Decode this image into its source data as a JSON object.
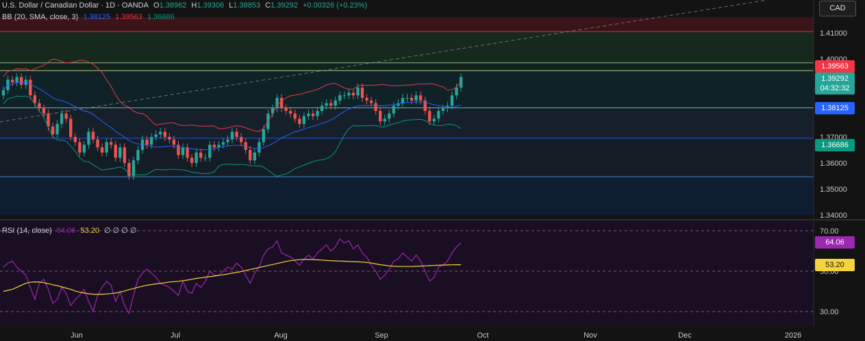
{
  "header": {
    "symbol_title": "U.S. Dollar / Canadian Dollar · 1D · OANDA",
    "open_label": "O",
    "open": "1.38962",
    "high_label": "H",
    "high": "1.39306",
    "low_label": "L",
    "low": "1.38853",
    "close_label": "C",
    "close": "1.39292",
    "change": "+0.00326 (+0.23%)",
    "bb_label": "BB (20, SMA, close, 3)",
    "bb_basis": "1.38125",
    "bb_upper": "1.39563",
    "bb_lower": "1.36686",
    "rsi_label": "RSI (14, close)",
    "rsi_value": "64.06",
    "rsi_ma": "53.20",
    "rsi_extra": "∅ ∅ ∅ ∅"
  },
  "currency_button": "CAD",
  "price_badges": {
    "bb_upper": "1.39563",
    "last": "1.39292",
    "countdown": "04:32:32",
    "bb_basis": "1.38125",
    "bb_lower": "1.36686",
    "rsi": "64.06",
    "rsi_ma": "53.20"
  },
  "colors": {
    "background": "#131313",
    "up": "#26a69a",
    "down": "#ef5350",
    "bb_basis": "#2962ff",
    "bb_upper": "#f23645",
    "bb_lower": "#089981",
    "rsi": "#9c27b0",
    "rsi_ma": "#f5d33a"
  },
  "chart_data": [
    {
      "type": "candlestick",
      "title": "U.S. Dollar / Canadian Dollar · 1D · OANDA",
      "y_axis_ticks": [
        "1.41000",
        "1.40000",
        "1.37000",
        "1.36000",
        "1.35000",
        "1.34000"
      ],
      "x_axis_ticks": [
        "Jun",
        "Jul",
        "Aug",
        "Sep",
        "Oct",
        "Nov",
        "Dec",
        "2026"
      ],
      "ylim": [
        1.337,
        1.426
      ],
      "ohlc_close_series": [
        1.388,
        1.392,
        1.391,
        1.393,
        1.39,
        1.392,
        1.386,
        1.383,
        1.381,
        1.379,
        1.374,
        1.371,
        1.375,
        1.379,
        1.377,
        1.37,
        1.368,
        1.364,
        1.367,
        1.372,
        1.369,
        1.366,
        1.364,
        1.368,
        1.367,
        1.362,
        1.366,
        1.36,
        1.355,
        1.361,
        1.365,
        1.369,
        1.367,
        1.37,
        1.371,
        1.372,
        1.37,
        1.369,
        1.367,
        1.363,
        1.366,
        1.362,
        1.36,
        1.364,
        1.362,
        1.362,
        1.367,
        1.366,
        1.367,
        1.368,
        1.369,
        1.372,
        1.37,
        1.368,
        1.365,
        1.361,
        1.364,
        1.368,
        1.373,
        1.379,
        1.381,
        1.385,
        1.381,
        1.38,
        1.379,
        1.377,
        1.375,
        1.378,
        1.379,
        1.378,
        1.38,
        1.382,
        1.383,
        1.382,
        1.384,
        1.386,
        1.386,
        1.387,
        1.386,
        1.389,
        1.385,
        1.384,
        1.383,
        1.38,
        1.376,
        1.377,
        1.379,
        1.382,
        1.383,
        1.385,
        1.385,
        1.384,
        1.386,
        1.384,
        1.38,
        1.376,
        1.377,
        1.38,
        1.381,
        1.382,
        1.386,
        1.389,
        1.393
      ],
      "series": [
        {
          "name": "BB upper",
          "value": 1.39563
        },
        {
          "name": "BB basis",
          "value": 1.38125
        },
        {
          "name": "BB lower",
          "value": 1.36686
        }
      ],
      "horizontal_levels": [
        1.4105,
        1.3985,
        1.3955,
        1.3812,
        1.3695,
        1.3547
      ],
      "shaded_zones": [
        {
          "from": 1.4105,
          "to": 1.416,
          "color": "#3a1418"
        },
        {
          "from": 1.3985,
          "to": 1.4105,
          "color": "#152a1c"
        },
        {
          "from": 1.3955,
          "to": 1.3985,
          "color": "#10241a"
        },
        {
          "from": 1.3812,
          "to": 1.3955,
          "color": "#0f2228"
        },
        {
          "from": 1.3695,
          "to": 1.3812,
          "color": "#15202a"
        },
        {
          "from": 1.3547,
          "to": 1.3695,
          "color": "#141d26"
        },
        {
          "from": 1.34,
          "to": 1.3547,
          "color": "#0f1d30"
        }
      ]
    },
    {
      "type": "line",
      "title": "RSI (14, close)",
      "y_axis_ticks": [
        "70.00",
        "50.00",
        "30.00"
      ],
      "ylim": [
        25,
        75
      ],
      "series": [
        {
          "name": "RSI",
          "values": [
            52,
            54,
            55,
            52,
            50,
            48,
            42,
            36,
            44,
            46,
            41,
            34,
            36,
            42,
            39,
            33,
            36,
            38,
            41,
            35,
            30,
            38,
            42,
            45,
            43,
            35,
            40,
            33,
            29,
            38,
            46,
            49,
            51,
            49,
            47,
            44,
            43,
            42,
            40,
            38,
            45,
            40,
            39,
            44,
            42,
            45,
            50,
            48,
            48,
            50,
            52,
            51,
            54,
            52,
            48,
            44,
            49,
            52,
            58,
            61,
            62,
            65,
            59,
            58,
            57,
            55,
            53,
            56,
            58,
            56,
            59,
            61,
            63,
            60,
            62,
            66,
            64,
            65,
            61,
            63,
            59,
            57,
            53,
            50,
            46,
            48,
            51,
            55,
            56,
            59,
            57,
            55,
            58,
            55,
            50,
            45,
            47,
            52,
            53,
            55,
            59,
            62,
            64.06
          ]
        },
        {
          "name": "RSI-based MA",
          "values": [
            40,
            40.5,
            41,
            42,
            43,
            44,
            44.5,
            44.7,
            44.6,
            44.3,
            43.8,
            43.3,
            42.8,
            42.2,
            41.6,
            41,
            40.2,
            39.6,
            39.2,
            38.8,
            38.6,
            38.5,
            38.6,
            38.7,
            38.9,
            39.2,
            39.6,
            40.2,
            40.8,
            41.4,
            42,
            42.5,
            43,
            43.4,
            43.7,
            44,
            44.3,
            44.6,
            44.8,
            45,
            45.3,
            45.6,
            46,
            46.4,
            46.7,
            47,
            47.3,
            47.6,
            47.9,
            48.2,
            48.6,
            49,
            49.4,
            49.8,
            50.3,
            50.8,
            51.3,
            51.8,
            52.3,
            52.8,
            53.3,
            53.8,
            54.3,
            54.8,
            55.2,
            55.5,
            55.7,
            55.8,
            55.8,
            55.7,
            55.6,
            55.5,
            55.3,
            55.2,
            55.1,
            55,
            54.9,
            54.8,
            54.7,
            54.6,
            54.5,
            54.3,
            54,
            53.6,
            53.2,
            52.9,
            52.6,
            52.4,
            52.3,
            52.3,
            52.3,
            52.3,
            52.4,
            52.5,
            52.6,
            52.7,
            52.8,
            52.9,
            53,
            53.1,
            53.15,
            53.2,
            53.2
          ]
        }
      ]
    }
  ]
}
